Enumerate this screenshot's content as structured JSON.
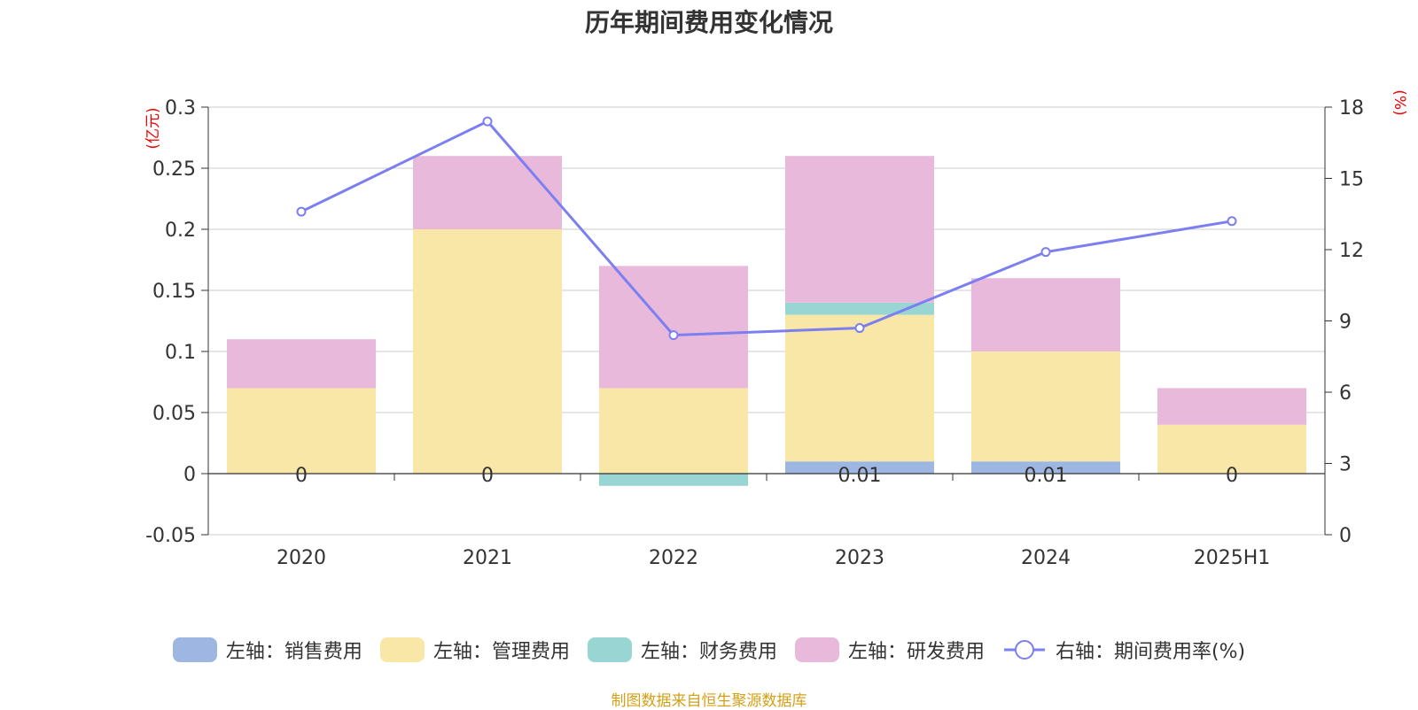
{
  "chart_data": {
    "type": "bar",
    "title": "历年期间费用变化情况",
    "categories": [
      "2020",
      "2021",
      "2022",
      "2023",
      "2024",
      "2025H1"
    ],
    "stacked": true,
    "series": [
      {
        "name": "左轴：销售费用",
        "axis": "left",
        "color": "#9db6e2",
        "values": [
          0,
          0,
          0,
          0.01,
          0.01,
          0
        ]
      },
      {
        "name": "左轴：管理费用",
        "axis": "left",
        "color": "#f8e7a6",
        "values": [
          0.07,
          0.2,
          0.07,
          0.12,
          0.09,
          0.04
        ]
      },
      {
        "name": "左轴：财务费用",
        "axis": "left",
        "color": "#99d5d3",
        "values": [
          0,
          0,
          -0.01,
          0.01,
          0,
          0
        ]
      },
      {
        "name": "左轴：研发费用",
        "axis": "left",
        "color": "#e8b9da",
        "values": [
          0.04,
          0.06,
          0.1,
          0.12,
          0.06,
          0.03
        ]
      }
    ],
    "line_series": [
      {
        "name": "右轴：期间费用率(%)",
        "axis": "right",
        "type": "line",
        "color": "#7b7ff0",
        "values": [
          13.6,
          17.4,
          8.4,
          8.7,
          11.9,
          13.2
        ]
      }
    ],
    "data_labels": [
      "0",
      "0",
      "",
      "0.01",
      "0.01",
      "0"
    ],
    "ylabel": "(亿元)",
    "ylabel_right": "(%)",
    "ylim": [
      -0.05,
      0.3
    ],
    "y_ticks": [
      "-0.05",
      "0",
      "0.05",
      "0.1",
      "0.15",
      "0.2",
      "0.25",
      "0.3"
    ],
    "ylim_right": [
      0,
      18
    ],
    "y_ticks_right": [
      "0",
      "3",
      "6",
      "9",
      "12",
      "15",
      "18"
    ],
    "grid": true,
    "legend_position": "bottom"
  },
  "source_text": "制图数据来自恒生聚源数据库"
}
